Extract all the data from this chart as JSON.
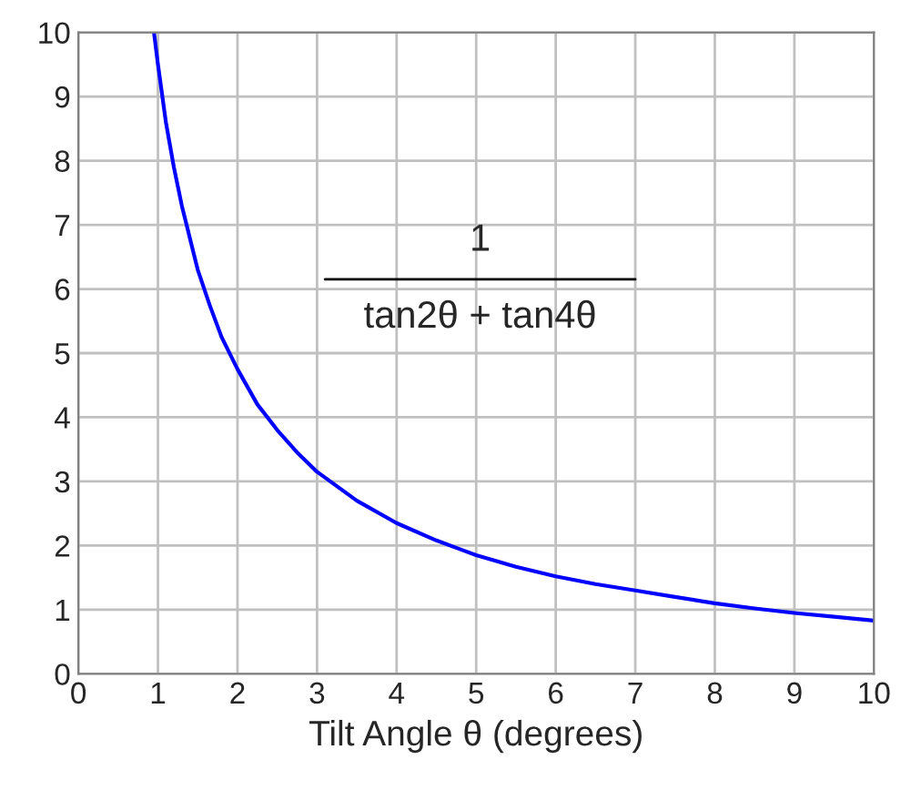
{
  "chart_data": {
    "type": "line",
    "xlabel": "Tilt Angle θ (degrees)",
    "x": [
      0.95,
      1.0,
      1.1,
      1.2,
      1.3,
      1.4,
      1.5,
      1.65,
      1.8,
      2.0,
      2.25,
      2.5,
      2.75,
      3.0,
      3.5,
      4.0,
      4.5,
      5.0,
      5.5,
      6.0,
      6.5,
      7.0,
      7.5,
      8.0,
      8.5,
      9.0,
      9.5,
      10.0
    ],
    "series": [
      {
        "color": "#0000ff",
        "values": [
          10.0,
          9.5,
          8.6,
          7.9,
          7.3,
          6.8,
          6.3,
          5.75,
          5.25,
          4.75,
          4.2,
          3.8,
          3.45,
          3.15,
          2.7,
          2.35,
          2.08,
          1.85,
          1.67,
          1.52,
          1.4,
          1.3,
          1.2,
          1.1,
          1.02,
          0.95,
          0.89,
          0.83
        ]
      }
    ],
    "xlim": [
      0,
      10
    ],
    "ylim": [
      0,
      10
    ],
    "xticks": [
      0,
      1,
      2,
      3,
      4,
      5,
      6,
      7,
      8,
      9,
      10
    ],
    "yticks": [
      0,
      1,
      2,
      3,
      4,
      5,
      6,
      7,
      8,
      9,
      10
    ],
    "grid": true,
    "legend": false,
    "marker": "none",
    "line_style": "solid",
    "annotations": [
      "1",
      "tan2θ + tan4θ"
    ]
  }
}
